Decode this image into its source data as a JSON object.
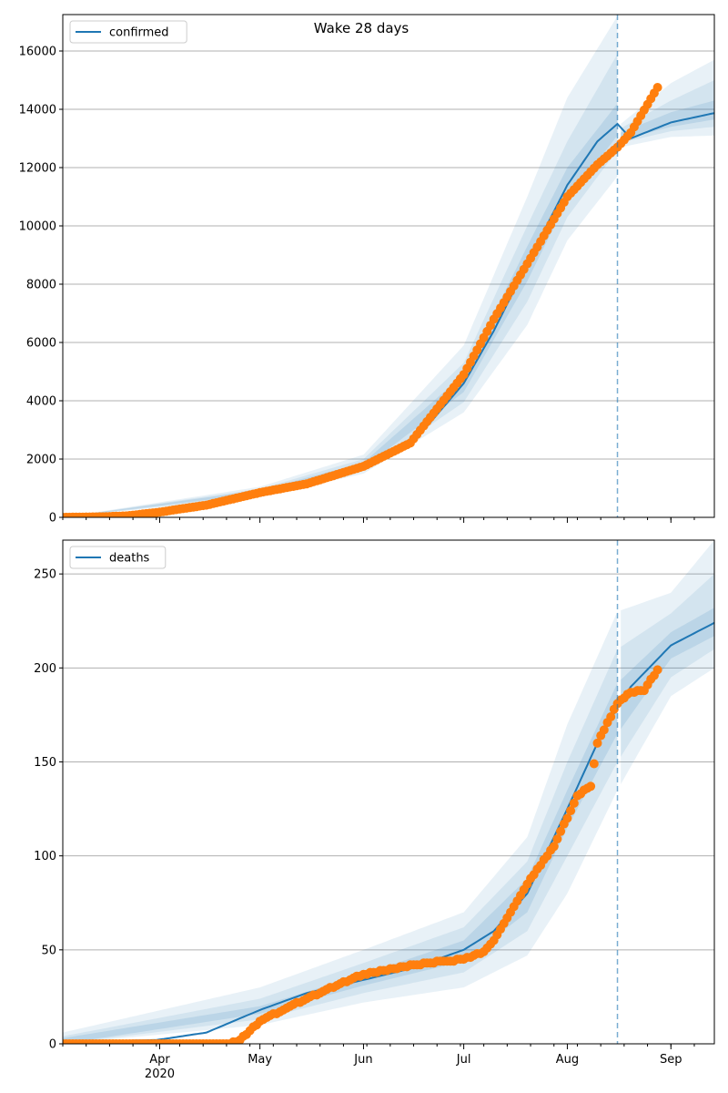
{
  "title": "Wake 28 days",
  "colors": {
    "model_line": "#1f77b4",
    "observed_points": "#ff7f0e",
    "band": "#1f77b4",
    "grid": "#b0b0b0",
    "cutoff_line": "#1f77b4"
  },
  "x_axis": {
    "month_labels": [
      {
        "date": "2020-04-01",
        "label": "Apr",
        "sublabel": "2020"
      },
      {
        "date": "2020-05-01",
        "label": "May"
      },
      {
        "date": "2020-06-01",
        "label": "Jun"
      },
      {
        "date": "2020-07-01",
        "label": "Jul"
      },
      {
        "date": "2020-08-01",
        "label": "Aug"
      },
      {
        "date": "2020-09-01",
        "label": "Sep"
      }
    ]
  },
  "chart_data": [
    {
      "type": "line",
      "legend": "confirmed",
      "legend_position": "top-left",
      "grid": "horizontal",
      "x_range": [
        "2020-03-03",
        "2020-09-14"
      ],
      "ylim": [
        0,
        17250
      ],
      "yticks": [
        0,
        2000,
        4000,
        6000,
        8000,
        10000,
        12000,
        14000,
        16000
      ],
      "forecast_start": "2020-08-16",
      "model": {
        "name": "confirmed",
        "points": [
          [
            "2020-03-03",
            0
          ],
          [
            "2020-03-20",
            30
          ],
          [
            "2020-04-01",
            200
          ],
          [
            "2020-04-15",
            430
          ],
          [
            "2020-05-01",
            870
          ],
          [
            "2020-05-15",
            1250
          ],
          [
            "2020-06-01",
            1780
          ],
          [
            "2020-06-15",
            2450
          ],
          [
            "2020-07-01",
            4600
          ],
          [
            "2020-07-10",
            6400
          ],
          [
            "2020-07-20",
            8700
          ],
          [
            "2020-08-01",
            11400
          ],
          [
            "2020-08-10",
            12900
          ],
          [
            "2020-08-16",
            13500
          ],
          [
            "2020-08-20",
            13000
          ],
          [
            "2020-09-01",
            13550
          ],
          [
            "2020-09-14",
            13870
          ]
        ]
      },
      "uncertainty_bands": [
        {
          "level": "outer",
          "lower": [
            [
              "2020-03-03",
              0
            ],
            [
              "2020-05-01",
              700
            ],
            [
              "2020-06-01",
              1500
            ],
            [
              "2020-07-01",
              3600
            ],
            [
              "2020-07-20",
              6600
            ],
            [
              "2020-08-01",
              9500
            ],
            [
              "2020-08-16",
              11700
            ],
            [
              "2020-08-17",
              12700
            ],
            [
              "2020-09-01",
              13050
            ],
            [
              "2020-09-14",
              13100
            ]
          ],
          "upper": [
            [
              "2020-03-03",
              0
            ],
            [
              "2020-05-01",
              1050
            ],
            [
              "2020-06-01",
              2150
            ],
            [
              "2020-07-01",
              5900
            ],
            [
              "2020-07-20",
              11000
            ],
            [
              "2020-08-01",
              14400
            ],
            [
              "2020-08-16",
              17200
            ],
            [
              "2020-08-17",
              13500
            ],
            [
              "2020-09-01",
              14900
            ],
            [
              "2020-09-14",
              15700
            ]
          ]
        },
        {
          "level": "middle",
          "lower": [
            [
              "2020-03-03",
              0
            ],
            [
              "2020-05-01",
              750
            ],
            [
              "2020-06-01",
              1600
            ],
            [
              "2020-07-01",
              3950
            ],
            [
              "2020-07-20",
              7400
            ],
            [
              "2020-08-01",
              10300
            ],
            [
              "2020-08-16",
              12600
            ],
            [
              "2020-08-17",
              12850
            ],
            [
              "2020-09-01",
              13250
            ],
            [
              "2020-09-14",
              13400
            ]
          ],
          "upper": [
            [
              "2020-03-03",
              0
            ],
            [
              "2020-05-01",
              980
            ],
            [
              "2020-06-01",
              2000
            ],
            [
              "2020-07-01",
              5300
            ],
            [
              "2020-07-20",
              10000
            ],
            [
              "2020-08-01",
              12900
            ],
            [
              "2020-08-16",
              15900
            ],
            [
              "2020-08-17",
              13350
            ],
            [
              "2020-09-01",
              14300
            ],
            [
              "2020-09-14",
              15000
            ]
          ]
        },
        {
          "level": "inner",
          "lower": [
            [
              "2020-03-03",
              0
            ],
            [
              "2020-05-01",
              820
            ],
            [
              "2020-06-01",
              1700
            ],
            [
              "2020-07-01",
              4300
            ],
            [
              "2020-07-20",
              8100
            ],
            [
              "2020-08-01",
              10900
            ],
            [
              "2020-08-16",
              13100
            ],
            [
              "2020-08-17",
              12950
            ],
            [
              "2020-09-01",
              13400
            ],
            [
              "2020-09-14",
              13650
            ]
          ],
          "upper": [
            [
              "2020-03-03",
              0
            ],
            [
              "2020-05-01",
              930
            ],
            [
              "2020-06-01",
              1880
            ],
            [
              "2020-07-01",
              4900
            ],
            [
              "2020-07-20",
              9300
            ],
            [
              "2020-08-01",
              12000
            ],
            [
              "2020-08-16",
              14200
            ],
            [
              "2020-08-17",
              13200
            ],
            [
              "2020-09-01",
              13900
            ],
            [
              "2020-09-14",
              14300
            ]
          ]
        }
      ],
      "observed": {
        "name": "observed",
        "start": "2020-03-03",
        "cumulative": [
          [
            [
              "2020-03-03",
              0
            ],
            [
              "2020-03-15",
              20
            ],
            [
              "2020-03-22",
              50
            ],
            [
              "2020-04-01",
              180
            ],
            [
              "2020-04-15",
              420
            ],
            [
              "2020-05-01",
              850
            ],
            [
              "2020-05-15",
              1150
            ],
            [
              "2020-06-01",
              1750
            ],
            [
              "2020-06-15",
              2550
            ],
            [
              "2020-07-01",
              4900
            ],
            [
              "2020-07-10",
              6800
            ],
            [
              "2020-07-20",
              8700
            ],
            [
              "2020-08-01",
              11000
            ],
            [
              "2020-08-10",
              12100
            ],
            [
              "2020-08-16",
              12700
            ],
            [
              "2020-08-20",
              13200
            ],
            [
              "2020-08-28",
              14750
            ]
          ]
        ]
      }
    },
    {
      "type": "line",
      "legend": "deaths",
      "legend_position": "top-left",
      "grid": "horizontal",
      "x_range": [
        "2020-03-03",
        "2020-09-14"
      ],
      "ylim": [
        0,
        268
      ],
      "yticks": [
        0,
        50,
        100,
        150,
        200,
        250
      ],
      "forecast_start": "2020-08-16",
      "model": {
        "name": "deaths",
        "points": [
          [
            "2020-03-03",
            1
          ],
          [
            "2020-03-31",
            2
          ],
          [
            "2020-04-15",
            6
          ],
          [
            "2020-05-01",
            18
          ],
          [
            "2020-05-15",
            27
          ],
          [
            "2020-06-01",
            34
          ],
          [
            "2020-06-15",
            40
          ],
          [
            "2020-07-01",
            50
          ],
          [
            "2020-07-10",
            60
          ],
          [
            "2020-07-20",
            80
          ],
          [
            "2020-08-01",
            125
          ],
          [
            "2020-08-10",
            160
          ],
          [
            "2020-08-16",
            179
          ],
          [
            "2020-08-20",
            190
          ],
          [
            "2020-09-01",
            212
          ],
          [
            "2020-09-14",
            224
          ]
        ]
      },
      "uncertainty_bands": [
        {
          "level": "outer",
          "lower": [
            [
              "2020-03-03",
              0
            ],
            [
              "2020-05-01",
              10
            ],
            [
              "2020-06-01",
              22
            ],
            [
              "2020-07-01",
              30
            ],
            [
              "2020-07-20",
              47
            ],
            [
              "2020-08-01",
              80
            ],
            [
              "2020-08-16",
              135
            ],
            [
              "2020-09-01",
              185
            ],
            [
              "2020-09-14",
              200
            ]
          ],
          "upper": [
            [
              "2020-03-03",
              6
            ],
            [
              "2020-05-01",
              30
            ],
            [
              "2020-06-01",
              50
            ],
            [
              "2020-07-01",
              70
            ],
            [
              "2020-07-20",
              110
            ],
            [
              "2020-08-01",
              170
            ],
            [
              "2020-08-16",
              230
            ],
            [
              "2020-09-01",
              240
            ],
            [
              "2020-09-14",
              268
            ]
          ]
        },
        {
          "level": "middle",
          "lower": [
            [
              "2020-03-03",
              0
            ],
            [
              "2020-05-01",
              13
            ],
            [
              "2020-06-01",
              27
            ],
            [
              "2020-07-01",
              38
            ],
            [
              "2020-07-20",
              60
            ],
            [
              "2020-08-01",
              100
            ],
            [
              "2020-08-16",
              150
            ],
            [
              "2020-09-01",
              195
            ],
            [
              "2020-09-14",
              210
            ]
          ],
          "upper": [
            [
              "2020-03-03",
              4
            ],
            [
              "2020-05-01",
              24
            ],
            [
              "2020-06-01",
              43
            ],
            [
              "2020-07-01",
              62
            ],
            [
              "2020-07-20",
              97
            ],
            [
              "2020-08-01",
              150
            ],
            [
              "2020-08-16",
              210
            ],
            [
              "2020-09-01",
              229
            ],
            [
              "2020-09-14",
              250
            ]
          ]
        },
        {
          "level": "inner",
          "lower": [
            [
              "2020-03-03",
              0
            ],
            [
              "2020-05-01",
              16
            ],
            [
              "2020-06-01",
              31
            ],
            [
              "2020-07-01",
              44
            ],
            [
              "2020-07-20",
              70
            ],
            [
              "2020-08-01",
              115
            ],
            [
              "2020-08-16",
              165
            ],
            [
              "2020-09-01",
              205
            ],
            [
              "2020-09-14",
              217
            ]
          ],
          "upper": [
            [
              "2020-03-03",
              3
            ],
            [
              "2020-05-01",
              20
            ],
            [
              "2020-06-01",
              37
            ],
            [
              "2020-07-01",
              55
            ],
            [
              "2020-07-20",
              88
            ],
            [
              "2020-08-01",
              135
            ],
            [
              "2020-08-16",
              192
            ],
            [
              "2020-09-01",
              219
            ],
            [
              "2020-09-14",
              232
            ]
          ]
        }
      ],
      "observed": {
        "name": "observed",
        "start": "2020-03-03",
        "cumulative": [
          [
            [
              "2020-03-03",
              0
            ],
            [
              "2020-04-22",
              0
            ],
            [
              "2020-04-25",
              2
            ],
            [
              "2020-05-01",
              12
            ],
            [
              "2020-05-10",
              20
            ],
            [
              "2020-05-20",
              28
            ],
            [
              "2020-06-01",
              37
            ],
            [
              "2020-06-10",
              40
            ],
            [
              "2020-06-20",
              43
            ],
            [
              "2020-07-01",
              45
            ],
            [
              "2020-07-07",
              49
            ],
            [
              "2020-07-10",
              55
            ],
            [
              "2020-07-20",
              85
            ],
            [
              "2020-07-28",
              105
            ],
            [
              "2020-08-04",
              132
            ],
            [
              "2020-08-08",
              137
            ],
            [
              "2020-08-10",
              160
            ],
            [
              "2020-08-16",
              181
            ],
            [
              "2020-08-20",
              187
            ],
            [
              "2020-08-24",
              188
            ],
            [
              "2020-08-28",
              199
            ]
          ]
        ]
      }
    }
  ]
}
